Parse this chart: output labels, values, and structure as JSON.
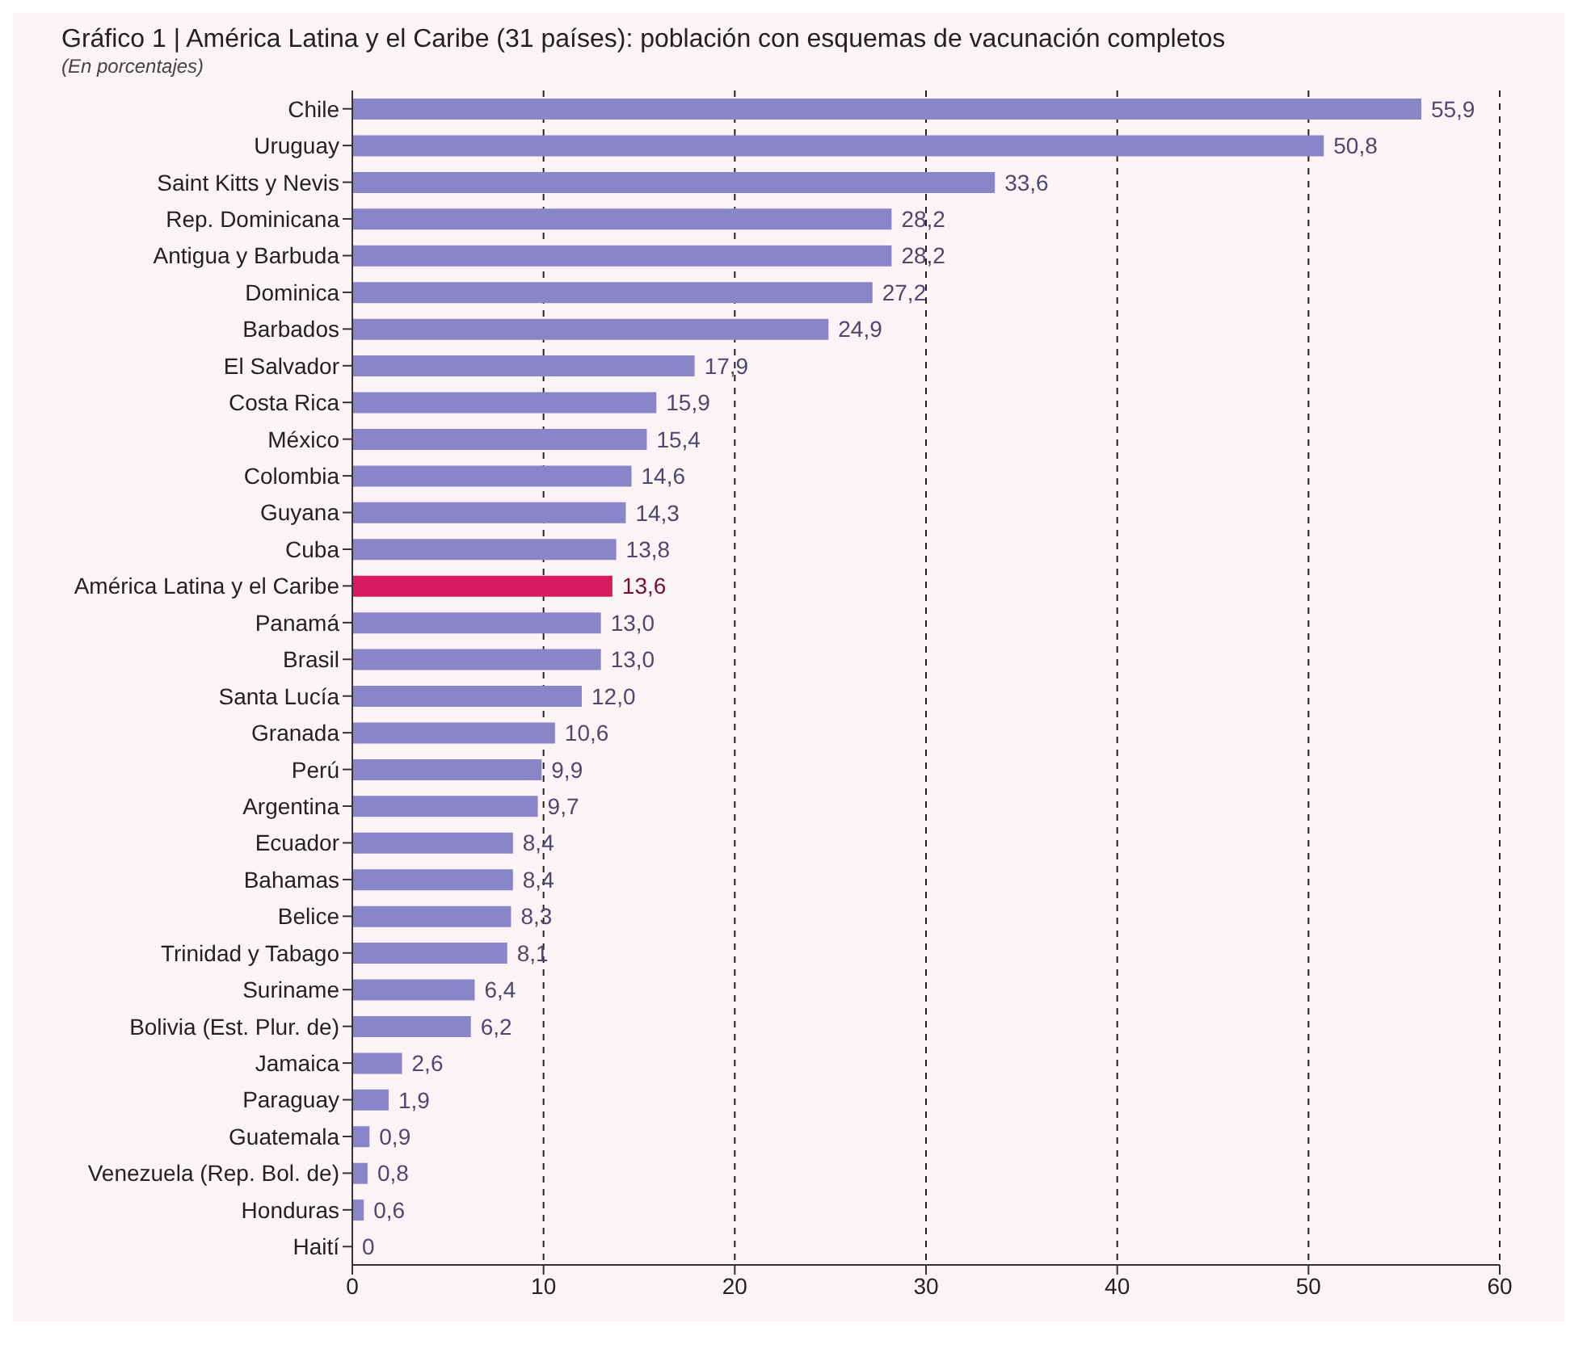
{
  "chart_data": {
    "type": "bar",
    "orientation": "horizontal",
    "title": "Gráfico 1 | América Latina y el Caribe (31 países): población con esquemas de vacunación completos",
    "subtitle": "(En porcentajes)",
    "categories": [
      "Chile",
      "Uruguay",
      "Saint Kitts y Nevis",
      "Rep. Dominicana",
      "Antigua y Barbuda",
      "Dominica",
      "Barbados",
      "El Salvador",
      "Costa Rica",
      "México",
      "Colombia",
      "Guyana",
      "Cuba",
      "América Latina y el Caribe",
      "Panamá",
      "Brasil",
      "Santa Lucía",
      "Granada",
      "Perú",
      "Argentina",
      "Ecuador",
      "Bahamas",
      "Belice",
      "Trinidad y Tabago",
      "Suriname",
      "Bolivia (Est. Plur. de)",
      "Jamaica",
      "Paraguay",
      "Guatemala",
      "Venezuela (Rep. Bol. de)",
      "Honduras",
      "Haití"
    ],
    "values": [
      55.9,
      50.8,
      33.6,
      28.2,
      28.2,
      27.2,
      24.9,
      17.9,
      15.9,
      15.4,
      14.6,
      14.3,
      13.8,
      13.6,
      13.0,
      13.0,
      12.0,
      10.6,
      9.9,
      9.7,
      8.4,
      8.4,
      8.3,
      8.1,
      6.4,
      6.2,
      2.6,
      1.9,
      0.9,
      0.8,
      0.6,
      0
    ],
    "value_labels": [
      "55,9",
      "50,8",
      "33,6",
      "28,2",
      "28,2",
      "27,2",
      "24,9",
      "17,9",
      "15,9",
      "15,4",
      "14,6",
      "14,3",
      "13,8",
      "13,6",
      "13,0",
      "13,0",
      "12,0",
      "10,6",
      "9,9",
      "9,7",
      "8,4",
      "8,4",
      "8,3",
      "8,1",
      "6,4",
      "6,2",
      "2,6",
      "1,9",
      "0,9",
      "0,8",
      "0,6",
      "0"
    ],
    "colors": [
      "#8a84c8",
      "#8a84c8",
      "#8a84c8",
      "#8a84c8",
      "#8a84c8",
      "#8a84c8",
      "#8a84c8",
      "#8a84c8",
      "#8a84c8",
      "#8a84c8",
      "#8a84c8",
      "#8a84c8",
      "#8a84c8",
      "#d81b60",
      "#8a84c8",
      "#8a84c8",
      "#8a84c8",
      "#8a84c8",
      "#8a84c8",
      "#8a84c8",
      "#8a84c8",
      "#8a84c8",
      "#8a84c8",
      "#8a84c8",
      "#8a84c8",
      "#8a84c8",
      "#8a84c8",
      "#8a84c8",
      "#8a84c8",
      "#8a84c8",
      "#8a84c8",
      "#8a84c8"
    ],
    "xlim": [
      0,
      60
    ],
    "xticks": [
      0,
      10,
      20,
      30,
      40,
      50,
      60
    ],
    "grid": "x"
  }
}
